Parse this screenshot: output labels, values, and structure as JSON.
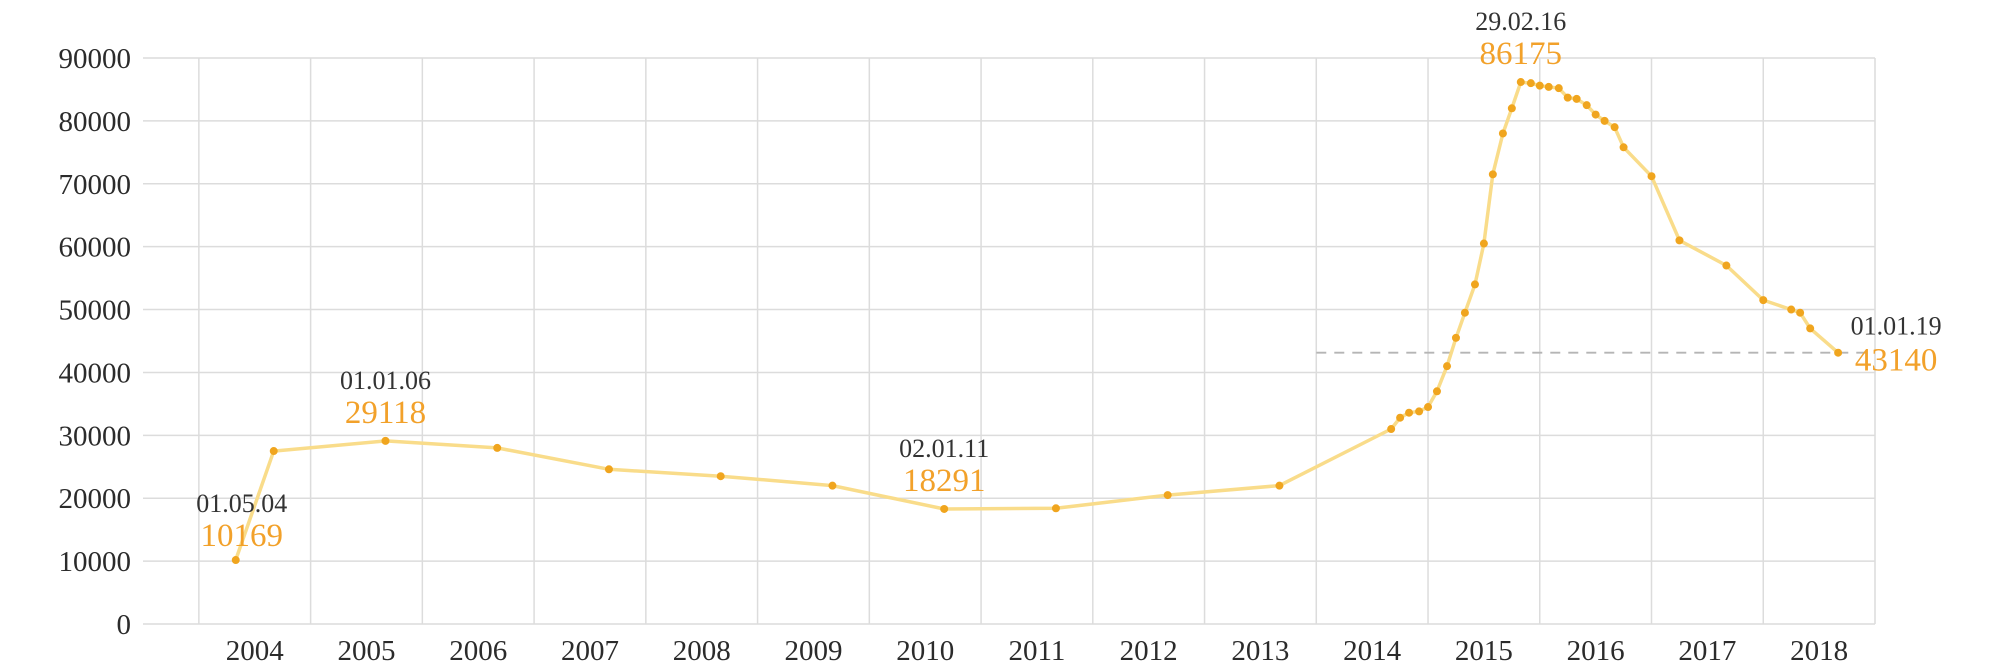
{
  "chart_data": {
    "type": "line",
    "title": "",
    "xlabel": "",
    "ylabel": "",
    "ylim": [
      0,
      90000
    ],
    "xlim": [
      2003.5,
      2019.0
    ],
    "grid": true,
    "y_ticks": [
      "0",
      "10000",
      "20000",
      "30000",
      "40000",
      "50000",
      "60000",
      "70000",
      "80000",
      "90000"
    ],
    "x_ticks": [
      "2004",
      "2005",
      "2006",
      "2007",
      "2008",
      "2009",
      "2010",
      "2011",
      "2012",
      "2013",
      "2014",
      "2015",
      "2016",
      "2017",
      "2018"
    ],
    "colors": {
      "line": "#f9dc8a",
      "marker": "#f0a51e",
      "value_text": "#f2a12a",
      "grid": "#dcdcdc",
      "reference_line": "#b5b5b5"
    },
    "series": [
      {
        "x": [
          2004.33,
          2004.67,
          2005.67,
          2006.67,
          2007.67,
          2008.67,
          2009.67,
          2010.67,
          2011.67,
          2012.67,
          2013.67,
          2014.67,
          2014.75,
          2014.83,
          2014.92,
          2015.0,
          2015.08,
          2015.17,
          2015.25,
          2015.33,
          2015.42,
          2015.5,
          2015.58,
          2015.67,
          2015.75,
          2015.83,
          2015.92,
          2016.0,
          2016.08,
          2016.17,
          2016.25,
          2016.33,
          2016.42,
          2016.5,
          2016.58,
          2016.67,
          2016.75,
          2017.0,
          2017.25,
          2017.67,
          2018.0,
          2018.25,
          2018.33,
          2018.42,
          2018.67
        ],
        "y": [
          10169,
          27500,
          29118,
          28000,
          24600,
          23500,
          22000,
          18291,
          18400,
          20500,
          22000,
          31000,
          32800,
          33600,
          33800,
          34500,
          37000,
          41000,
          45500,
          49500,
          54000,
          60500,
          71500,
          78000,
          82000,
          86175,
          86000,
          85600,
          85400,
          85200,
          83700,
          83500,
          82500,
          81000,
          80000,
          79000,
          75800,
          71200,
          61000,
          57000,
          51500,
          50000,
          49500,
          47000,
          43140
        ]
      }
    ],
    "reference_line": {
      "y": 43140,
      "x_from": 2014.0,
      "x_to": 2019.0
    },
    "annotations": [
      {
        "date": "01.05.04",
        "value": "10169",
        "x": 2004.33,
        "y": 10169
      },
      {
        "date": "01.01.06",
        "value": "29118",
        "x": 2005.67,
        "y": 29118
      },
      {
        "date": "02.01.11",
        "value": "18291",
        "x": 2010.67,
        "y": 18291
      },
      {
        "date": "29.02.16",
        "value": "86175",
        "x": 2015.83,
        "y": 86175
      },
      {
        "date": "01.01.19",
        "value": "43140",
        "x": 2018.67,
        "y": 43140
      }
    ]
  }
}
